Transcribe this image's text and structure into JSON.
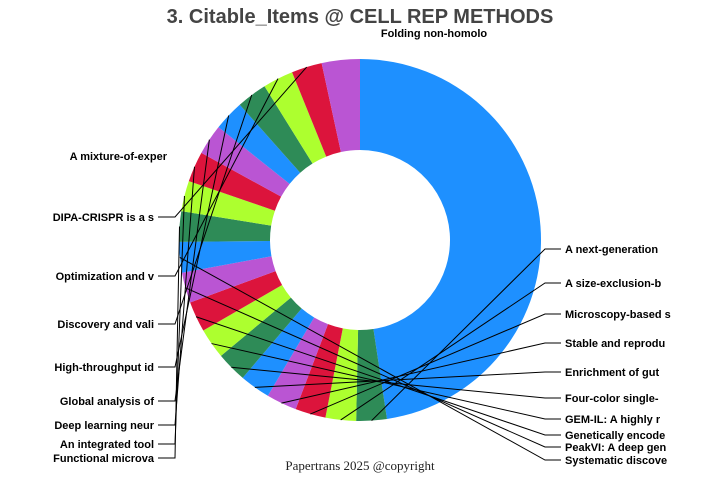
{
  "title": "3. Citable_Items @ CELL REP METHODS",
  "footer": "Papertrans 2025 @copyright",
  "colors": [
    "#1E90FF",
    "#2E8B57",
    "#ADFF2F",
    "#DC143C",
    "#BA55D3"
  ],
  "chart_data": {
    "type": "pie",
    "donut": true,
    "start_angle_deg": 90,
    "direction": "clockwise",
    "slices": [
      {
        "label": "Folding non-homolo",
        "value": 70
      },
      {
        "label": "A next-generation",
        "value": 4
      },
      {
        "label": "A size-exclusion-b",
        "value": 4
      },
      {
        "label": "Microscopy-based s",
        "value": 4
      },
      {
        "label": "Stable and reprodu",
        "value": 4
      },
      {
        "label": "Enrichment of gut",
        "value": 4
      },
      {
        "label": "Four-color single-",
        "value": 4
      },
      {
        "label": "GEM-IL: A highly r",
        "value": 4
      },
      {
        "label": "Genetically encode",
        "value": 4
      },
      {
        "label": "PeakVI: A deep gen",
        "value": 4
      },
      {
        "label": "Systematic discove",
        "value": 4
      },
      {
        "label": "Functional microva",
        "value": 4
      },
      {
        "label": "An integrated tool",
        "value": 4
      },
      {
        "label": "Deep learning neur",
        "value": 4
      },
      {
        "label": "Global analysis of",
        "value": 4
      },
      {
        "label": "High-throughput id",
        "value": 4
      },
      {
        "label": "Discovery and vali",
        "value": 4
      },
      {
        "label": "Optimization and v",
        "value": 4
      },
      {
        "label": "DIPA-CRISPR is a s",
        "value": 4
      },
      {
        "label": "A mixture-of-exper",
        "value": 5
      }
    ]
  }
}
